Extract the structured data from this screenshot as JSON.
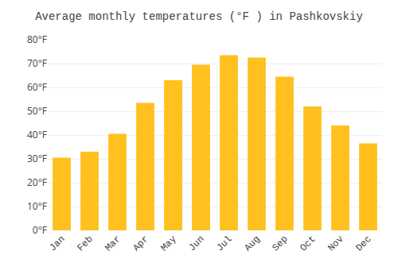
{
  "chart_data": {
    "type": "bar",
    "title": "Average monthly temperatures (°F ) in Pashkovskiy",
    "categories": [
      "Jan",
      "Feb",
      "Mar",
      "Apr",
      "May",
      "Jun",
      "Jul",
      "Aug",
      "Sep",
      "Oct",
      "Nov",
      "Dec"
    ],
    "values": [
      30.5,
      33.0,
      40.5,
      53.5,
      63.0,
      69.5,
      73.5,
      72.5,
      64.5,
      52.0,
      44.0,
      36.5
    ],
    "color": "#FFC020",
    "ylim": [
      0,
      80
    ],
    "yticks": [
      {
        "value": 0,
        "label": "0°F"
      },
      {
        "value": 10,
        "label": "10°F"
      },
      {
        "value": 20,
        "label": "20°F"
      },
      {
        "value": 30,
        "label": "30°F"
      },
      {
        "value": 40,
        "label": "40°F"
      },
      {
        "value": 50,
        "label": "50°F"
      },
      {
        "value": 60,
        "label": "60°F"
      },
      {
        "value": 70,
        "label": "70°F"
      },
      {
        "value": 80,
        "label": "80°F"
      }
    ],
    "grid": true
  }
}
